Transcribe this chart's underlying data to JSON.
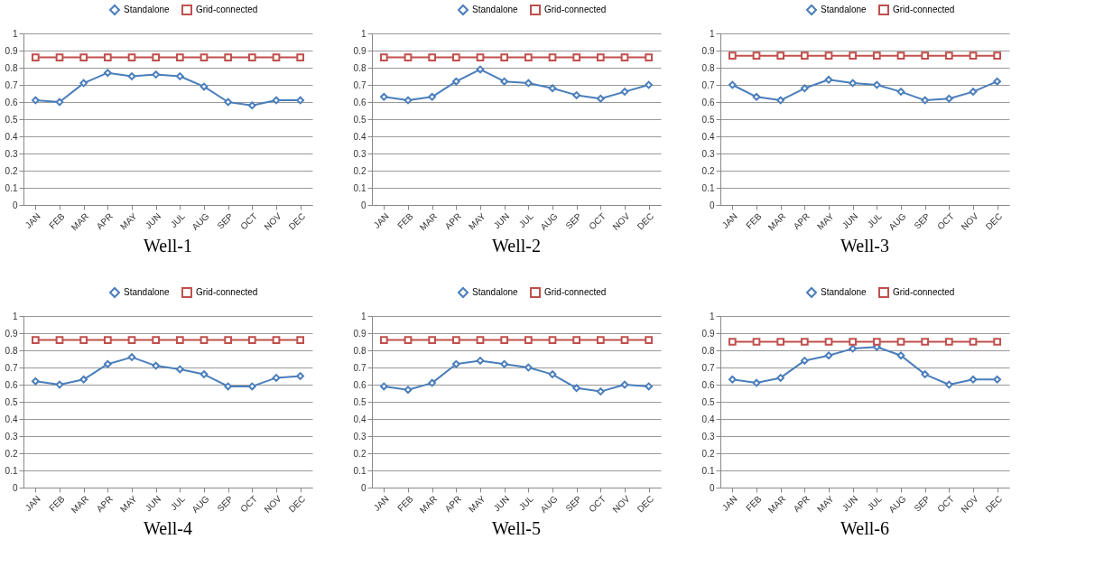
{
  "chart_data": [
    {
      "type": "line",
      "title": "Well-1",
      "categories": [
        "JAN",
        "FEB",
        "MAR",
        "APR",
        "MAY",
        "JUN",
        "JUL",
        "AUG",
        "SEP",
        "OCT",
        "NOV",
        "DEC"
      ],
      "ylim": [
        0,
        1
      ],
      "yticks": [
        0,
        0.1,
        0.2,
        0.3,
        0.4,
        0.5,
        0.6,
        0.7,
        0.8,
        0.9,
        1
      ],
      "grid": "y",
      "legend": "top",
      "series": [
        {
          "name": "Standalone",
          "color": "#4a7ebb",
          "marker": "diamond",
          "values": [
            0.61,
            0.6,
            0.71,
            0.77,
            0.75,
            0.76,
            0.75,
            0.69,
            0.6,
            0.58,
            0.61,
            0.61
          ]
        },
        {
          "name": "Grid-connected",
          "color": "#c0504d",
          "marker": "square",
          "values": [
            0.86,
            0.86,
            0.86,
            0.86,
            0.86,
            0.86,
            0.86,
            0.86,
            0.86,
            0.86,
            0.86,
            0.86
          ]
        }
      ]
    },
    {
      "type": "line",
      "title": "Well-2",
      "categories": [
        "JAN",
        "FEB",
        "MAR",
        "APR",
        "MAY",
        "JUN",
        "JUL",
        "AUG",
        "SEP",
        "OCT",
        "NOV",
        "DEC"
      ],
      "ylim": [
        0,
        1
      ],
      "yticks": [
        0,
        0.1,
        0.2,
        0.3,
        0.4,
        0.5,
        0.6,
        0.7,
        0.8,
        0.9,
        1
      ],
      "grid": "y",
      "legend": "top",
      "series": [
        {
          "name": "Standalone",
          "color": "#4a7ebb",
          "marker": "diamond",
          "values": [
            0.63,
            0.61,
            0.63,
            0.72,
            0.79,
            0.72,
            0.71,
            0.68,
            0.64,
            0.62,
            0.66,
            0.7
          ]
        },
        {
          "name": "Grid-connected",
          "color": "#c0504d",
          "marker": "square",
          "values": [
            0.86,
            0.86,
            0.86,
            0.86,
            0.86,
            0.86,
            0.86,
            0.86,
            0.86,
            0.86,
            0.86,
            0.86
          ]
        }
      ]
    },
    {
      "type": "line",
      "title": "Well-3",
      "categories": [
        "JAN",
        "FEB",
        "MAR",
        "APR",
        "MAY",
        "JUN",
        "JUL",
        "AUG",
        "SEP",
        "OCT",
        "NOV",
        "DEC"
      ],
      "ylim": [
        0,
        1
      ],
      "yticks": [
        0,
        0.1,
        0.2,
        0.3,
        0.4,
        0.5,
        0.6,
        0.7,
        0.8,
        0.9,
        1
      ],
      "grid": "y",
      "legend": "top",
      "series": [
        {
          "name": "Standalone",
          "color": "#4a7ebb",
          "marker": "diamond",
          "values": [
            0.7,
            0.63,
            0.61,
            0.68,
            0.73,
            0.71,
            0.7,
            0.66,
            0.61,
            0.62,
            0.66,
            0.72
          ]
        },
        {
          "name": "Grid-connected",
          "color": "#c0504d",
          "marker": "square",
          "values": [
            0.87,
            0.87,
            0.87,
            0.87,
            0.87,
            0.87,
            0.87,
            0.87,
            0.87,
            0.87,
            0.87,
            0.87
          ]
        }
      ]
    },
    {
      "type": "line",
      "title": "Well-4",
      "categories": [
        "JAN",
        "FEB",
        "MAR",
        "APR",
        "MAY",
        "JUN",
        "JUL",
        "AUG",
        "SEP",
        "OCT",
        "NOV",
        "DEC"
      ],
      "ylim": [
        0,
        1
      ],
      "yticks": [
        0,
        0.1,
        0.2,
        0.3,
        0.4,
        0.5,
        0.6,
        0.7,
        0.8,
        0.9,
        1
      ],
      "grid": "y",
      "legend": "top",
      "series": [
        {
          "name": "Standalone",
          "color": "#4a7ebb",
          "marker": "diamond",
          "values": [
            0.62,
            0.6,
            0.63,
            0.72,
            0.76,
            0.71,
            0.69,
            0.66,
            0.59,
            0.59,
            0.64,
            0.65
          ]
        },
        {
          "name": "Grid-connected",
          "color": "#c0504d",
          "marker": "square",
          "values": [
            0.86,
            0.86,
            0.86,
            0.86,
            0.86,
            0.86,
            0.86,
            0.86,
            0.86,
            0.86,
            0.86,
            0.86
          ]
        }
      ]
    },
    {
      "type": "line",
      "title": "Well-5",
      "categories": [
        "JAN",
        "FEB",
        "MAR",
        "APR",
        "MAY",
        "JUN",
        "JUL",
        "AUG",
        "SEP",
        "OCT",
        "NOV",
        "DEC"
      ],
      "ylim": [
        0,
        1
      ],
      "yticks": [
        0,
        0.1,
        0.2,
        0.3,
        0.4,
        0.5,
        0.6,
        0.7,
        0.8,
        0.9,
        1
      ],
      "grid": "y",
      "legend": "top",
      "series": [
        {
          "name": "Standalone",
          "color": "#4a7ebb",
          "marker": "diamond",
          "values": [
            0.59,
            0.57,
            0.61,
            0.72,
            0.74,
            0.72,
            0.7,
            0.66,
            0.58,
            0.56,
            0.6,
            0.59
          ]
        },
        {
          "name": "Grid-connected",
          "color": "#c0504d",
          "marker": "square",
          "values": [
            0.86,
            0.86,
            0.86,
            0.86,
            0.86,
            0.86,
            0.86,
            0.86,
            0.86,
            0.86,
            0.86,
            0.86
          ]
        }
      ]
    },
    {
      "type": "line",
      "title": "Well-6",
      "categories": [
        "JAN",
        "FEB",
        "MAR",
        "APR",
        "MAY",
        "JUN",
        "JUL",
        "AUG",
        "SEP",
        "OCT",
        "NOV",
        "DEC"
      ],
      "ylim": [
        0,
        1
      ],
      "yticks": [
        0,
        0.1,
        0.2,
        0.3,
        0.4,
        0.5,
        0.6,
        0.7,
        0.8,
        0.9,
        1
      ],
      "grid": "y",
      "legend": "top",
      "series": [
        {
          "name": "Standalone",
          "color": "#4a7ebb",
          "marker": "diamond",
          "values": [
            0.63,
            0.61,
            0.64,
            0.74,
            0.77,
            0.81,
            0.82,
            0.77,
            0.66,
            0.6,
            0.63,
            0.63
          ]
        },
        {
          "name": "Grid-connected",
          "color": "#c0504d",
          "marker": "square",
          "values": [
            0.85,
            0.85,
            0.85,
            0.85,
            0.85,
            0.85,
            0.85,
            0.85,
            0.85,
            0.85,
            0.85,
            0.85
          ]
        }
      ]
    }
  ]
}
